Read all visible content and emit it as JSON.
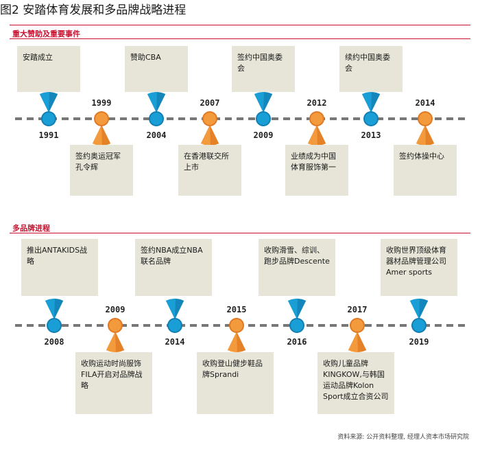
{
  "title": "图2  安踏体育发展和多品牌战略进程",
  "colors": {
    "blue": "#1a9ed6",
    "blue_dark": "#127fb3",
    "orange": "#f39a3d",
    "orange_dark": "#e07922",
    "box_bg": "#e7e5d8",
    "accent": "#c8102e",
    "line": "#777777"
  },
  "section1": {
    "title": "重大赞助及重要事件",
    "events": [
      {
        "year": "1991",
        "text": "安踏成立",
        "color": "blue"
      },
      {
        "year": "1999",
        "text": "签约奥运冠军孔令辉",
        "color": "orange"
      },
      {
        "year": "2004",
        "text": "赞助CBA",
        "color": "blue"
      },
      {
        "year": "2007",
        "text": "在香港联交所上市",
        "color": "orange"
      },
      {
        "year": "2009",
        "text": "签约中国奥委会",
        "color": "blue"
      },
      {
        "year": "2012",
        "text": "业绩成为中国体育服饰第一",
        "color": "orange"
      },
      {
        "year": "2013",
        "text": "续约中国奥委会",
        "color": "blue"
      },
      {
        "year": "2014",
        "text": "签约体操中心",
        "color": "orange"
      }
    ]
  },
  "section2": {
    "title": "多品牌进程",
    "events": [
      {
        "year": "2008",
        "text": "推出ANTAKIDS战略",
        "color": "blue"
      },
      {
        "year": "2009",
        "text": "收购运动时尚服饰FILA开启对品牌战略",
        "color": "orange"
      },
      {
        "year": "2014",
        "text": "签约NBA成立NBA联名品牌",
        "color": "blue"
      },
      {
        "year": "2015",
        "text": "收购登山健步鞋品牌Sprandi",
        "color": "orange"
      },
      {
        "year": "2016",
        "text": "收购滑雪、综训、跑步品牌Descente",
        "color": "blue"
      },
      {
        "year": "2017",
        "text": "收购儿童品牌KINGKOW,与韩国运动品牌Kolon Sport成立合资公司",
        "color": "orange"
      },
      {
        "year": "2019",
        "text": "收购世界顶级体育器材品牌管理公司Amer sports",
        "color": "blue"
      }
    ]
  },
  "source": "资料来源: 公开资料整理, 经理人资本市场研究院"
}
